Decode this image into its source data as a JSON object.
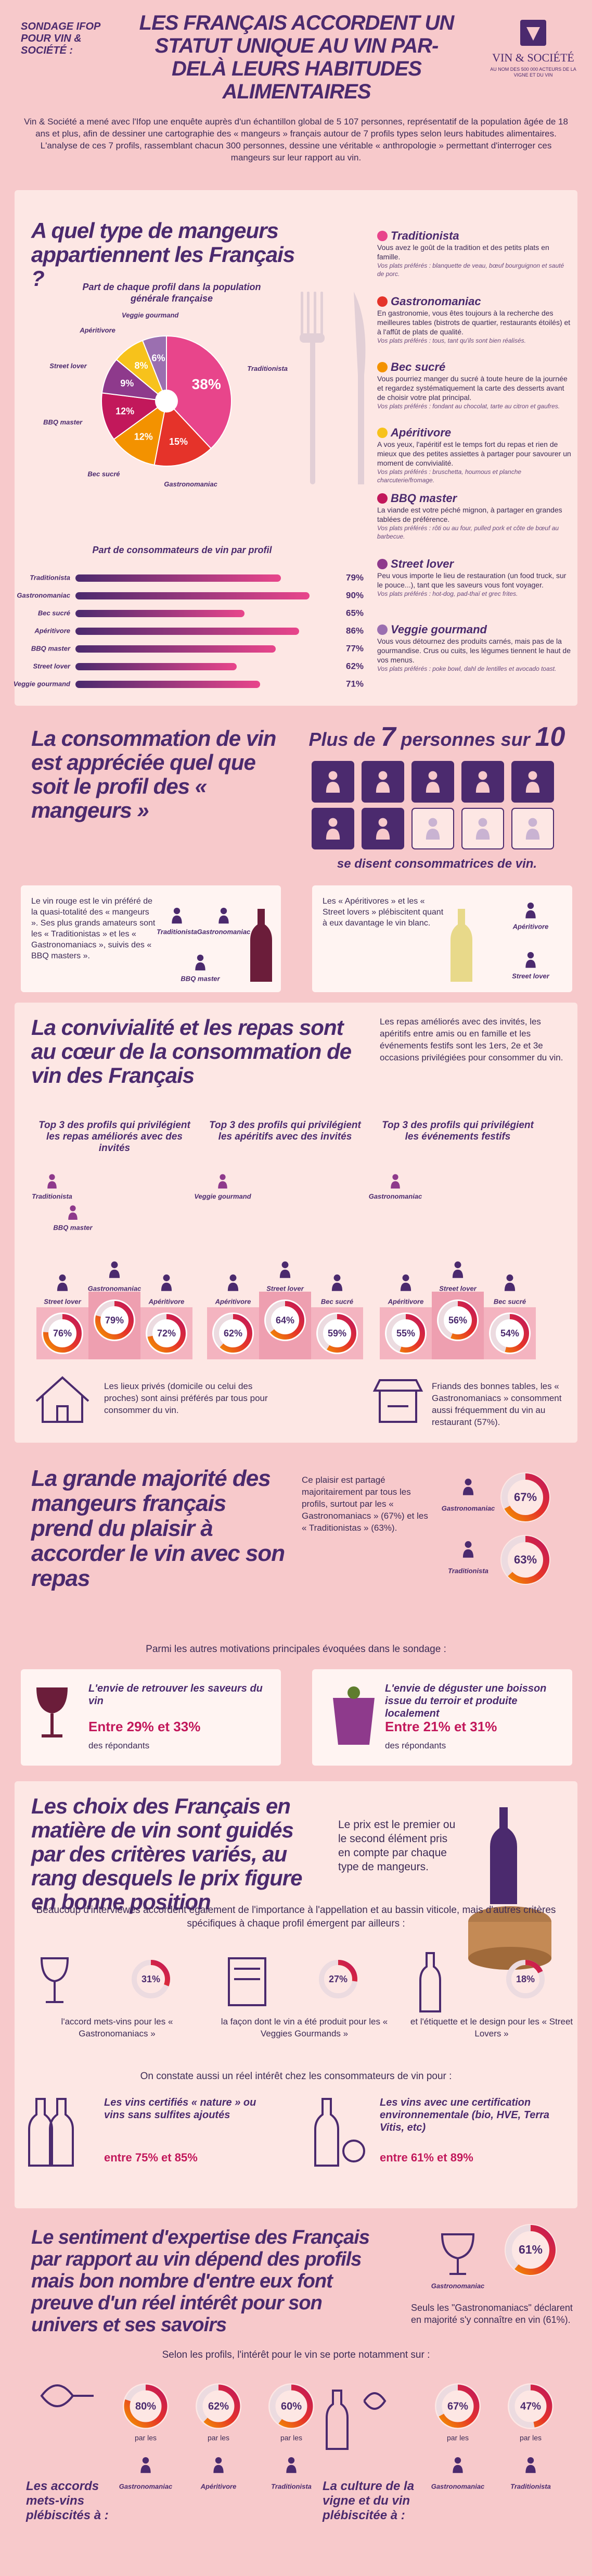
{
  "style": {
    "accent": "#4b2a6e",
    "page": "#f7c9cb",
    "card": "#fde7e4",
    "ring": "#ecdbe0",
    "donut_gradient": [
      "#f39200",
      "#e5332a",
      "#c2185b"
    ],
    "bar_gradient": [
      "#4b2a6e",
      "#e8458b"
    ]
  },
  "header": {
    "kicker": "SONDAGE IFOP POUR VIN & SOCIÉTÉ :",
    "title": "LES FRANÇAIS ACCORDENT UN STATUT UNIQUE AU VIN PAR-DELÀ LEURS HABITUDES ALIMENTAIRES",
    "logo": "VIN & SOCIÉTÉ",
    "logo_tagline": "AU NOM DES 500 000 ACTEURS DE LA VIGNE ET DU VIN"
  },
  "intro": "Vin & Société a mené avec l'Ifop une enquête auprès d'un échantillon global de 5 107 personnes, représentatif de la population âgée de 18 ans et plus, afin de dessiner une cartographie des « mangeurs » français autour de 7 profils types selon leurs habitudes alimentaires. L'analyse de ces 7 profils, rassemblant chacun 300 personnes, dessine une véritable « anthropologie » permettant d'interroger ces mangeurs sur leur rapport au vin.",
  "profiles_section": {
    "title": "A quel type de mangeurs appartiennent les Français ?",
    "pie": {
      "type": "pie",
      "title": "Part de chaque profil dans la population générale française",
      "categories": [
        "Traditionista",
        "Gastronomaniac",
        "Bec sucré",
        "BBQ master",
        "Street lover",
        "Apéritivore",
        "Veggie gourmand"
      ],
      "values": [
        38,
        15,
        12,
        12,
        9,
        8,
        6
      ],
      "value_labels": [
        "38%",
        "15%",
        "12%",
        "12%",
        "9%",
        "8%",
        "6%"
      ],
      "colors": [
        "#e8458b",
        "#e5332a",
        "#f39200",
        "#c2185b",
        "#8e3a8c",
        "#f7c21b",
        "#9b6fb0"
      ]
    },
    "bars": {
      "type": "bar",
      "orientation": "horizontal",
      "title": "Part de consommateurs de vin par profil",
      "categories": [
        "Traditionista",
        "Gastronomaniac",
        "Bec sucré",
        "Apéritivore",
        "BBQ master",
        "Street lover",
        "Veggie gourmand"
      ],
      "values": [
        79,
        90,
        65,
        86,
        77,
        62,
        71
      ],
      "value_labels": [
        "79%",
        "90%",
        "65%",
        "86%",
        "77%",
        "62%",
        "71%"
      ],
      "xlim": [
        0,
        100
      ]
    },
    "profiles": [
      {
        "name": "Traditionista",
        "description": "Vous avez le goût de la tradition et des petits plats en famille.",
        "dishes": "Vos plats préférés : blanquette de veau, bœuf bourguignon et sauté de porc."
      },
      {
        "name": "Gastronomaniac",
        "description": "En gastronomie, vous êtes toujours à la recherche des meilleures tables (bistrots de quartier, restaurants étoilés) et à l'affût de plats de qualité.",
        "dishes": "Vos plats préférés : tous, tant qu'ils sont bien réalisés."
      },
      {
        "name": "Bec sucré",
        "description": "Vous pourriez manger du sucré à toute heure de la journée et regardez systématiquement la carte des desserts avant de choisir votre plat principal.",
        "dishes": "Vos plats préférés : fondant au chocolat, tarte au citron et gaufres."
      },
      {
        "name": "Apéritivore",
        "description": "A vos yeux, l'apéritif est le temps fort du repas et rien de mieux que des petites assiettes à partager pour savourer un moment de convivialité.",
        "dishes": "Vos plats préférés : bruschetta, houmous et planche charcuterie/fromage."
      },
      {
        "name": "BBQ master",
        "description": "La viande est votre péché mignon, à partager en grandes tablées de préférence.",
        "dishes": "Vos plats préférés : rôti ou au four, pulled pork et côte de bœuf au barbecue."
      },
      {
        "name": "Street lover",
        "description": "Peu vous importe le lieu de restauration (un food truck, sur le pouce...), tant que les saveurs vous font voyager.",
        "dishes": "Vos plats préférés : hot-dog, pad-thaï et grec frites."
      },
      {
        "name": "Veggie gourmand",
        "description": "Vous vous détournez des produits carnés, mais pas de la gourmandise. Crus ou cuits, les légumes tiennent le haut de vos menus.",
        "dishes": "Vos plats préférés : poke bowl, dahl de lentilles et avocado toast."
      }
    ]
  },
  "wine_section": {
    "title": "La consommation de vin est appréciée quel que soit le profil des « mangeurs »",
    "headline": {
      "prefix": "Plus de",
      "count": 7,
      "middle": "personnes sur",
      "total": 10
    },
    "caption": "se disent consommatrices de vin.",
    "red": {
      "text": "Le vin rouge est le vin préféré de la quasi-totalité des « mangeurs ». Ses plus grands amateurs sont les « Traditionistas » et les « Gastronomaniacs », suivis des « BBQ masters ».",
      "profiles": [
        "Traditionista",
        "Gastronomaniac",
        "BBQ master"
      ]
    },
    "white": {
      "text": "Les « Apéritivores » et les « Street lovers » plébiscitent quant à eux davantage le vin blanc.",
      "profiles": [
        "Apéritivore",
        "Street lover"
      ]
    }
  },
  "conviviality": {
    "title": "La convivialité et les repas sont au cœur de la consommation de vin des Français",
    "text": "Les repas améliorés avec des invités, les apéritifs entre amis ou en famille et les événements festifs sont les 1ers, 2e et 3e occasions privilégiées pour consommer du vin.",
    "columns": [
      {
        "title": "Top 3 des profils qui privilégient les repas améliorés avec des invités",
        "others": [
          "Traditionista",
          "BBQ master"
        ],
        "podium": [
          {
            "name": "Street lover",
            "value": 76,
            "label": "76%"
          },
          {
            "name": "Gastronomaniac",
            "value": 79,
            "label": "79%"
          },
          {
            "name": "Apéritivore",
            "value": 72,
            "label": "72%"
          }
        ]
      },
      {
        "title": "Top 3 des profils qui privilégient les apéritifs avec des invités",
        "others": [
          "Veggie gourmand"
        ],
        "podium": [
          {
            "name": "Apéritivore",
            "value": 62,
            "label": "62%"
          },
          {
            "name": "Street lover",
            "value": 64,
            "label": "64%"
          },
          {
            "name": "Bec sucré",
            "value": 59,
            "label": "59%"
          }
        ]
      },
      {
        "title": "Top 3 des profils qui privilégient les événements festifs",
        "others": [
          "Gastronomaniac"
        ],
        "podium": [
          {
            "name": "Apéritivore",
            "value": 55,
            "label": "55%"
          },
          {
            "name": "Street lover",
            "value": 56,
            "label": "56%"
          },
          {
            "name": "Bec sucré",
            "value": 54,
            "label": "54%"
          }
        ]
      }
    ],
    "notes": [
      "Les lieux privés (domicile ou celui des proches) sont ainsi préférés par tous pour consommer du vin.",
      "Friands des bonnes tables, les « Gastronomaniacs » consomment aussi fréquemment du vin au restaurant (57%)."
    ]
  },
  "pairing": {
    "title": "La grande majorité des mangeurs français prend du plaisir à accorder le vin avec son repas",
    "text": "Ce plaisir est partagé majoritairement par tous les profils, surtout par les « Gastronomaniacs » (67%) et les « Traditionistas » (63%).",
    "donuts": [
      {
        "name": "Gastronomaniac",
        "value": 67,
        "label": "67%"
      },
      {
        "name": "Traditionista",
        "value": 63,
        "label": "63%"
      }
    ],
    "motivations_intro": "Parmi les autres motivations principales évoquées dans le sondage :",
    "motivations": [
      {
        "title": "L'envie de retrouver les saveurs du vin",
        "detail": "Entre 29% et 33%",
        "suffix": "des répondants"
      },
      {
        "title": "L'envie de déguster une boisson issue du terroir et produite localement",
        "detail": "Entre 21% et 31%",
        "suffix": "des répondants"
      }
    ]
  },
  "criteria": {
    "title": "Les choix des Français en matière de vin sont guidés par des critères variés, au rang desquels le prix figure en bonne position",
    "price_text": "Le prix est le premier ou le second élément pris en compte par chaque type de mangeurs.",
    "appellation_text": "Beaucoup d'interviewés accordent également de l'importance à l'appellation et au bassin viticole, mais d'autres critères spécifiques à chaque profil émergent par ailleurs :",
    "items": [
      {
        "value": 31,
        "label": "31%",
        "text": "l'accord mets-vins pour les « Gastronomaniacs »"
      },
      {
        "value": 27,
        "label": "27%",
        "text": "la façon dont le vin a été produit pour les « Veggies Gourmands »"
      },
      {
        "value": 18,
        "label": "18%",
        "text": "et l'étiquette et le design pour les « Street Lovers »"
      }
    ],
    "interest_intro": "On constate aussi un réel intérêt chez les consommateurs de vin pour :",
    "interests": [
      {
        "title": "Les vins certifiés « nature » ou vins sans sulfites ajoutés",
        "detail": "entre 75% et 85%"
      },
      {
        "title": "Les vins avec une certification environnementale (bio, HVE, Terra Vitis, etc)",
        "detail": "entre 61% et 89%"
      }
    ]
  },
  "expertise": {
    "title": "Le sentiment d'expertise des Français par rapport au vin dépend des profils mais bon nombre d'entre eux font preuve d'un réel intérêt pour son univers et ses savoirs",
    "donut": {
      "name": "Gastronomaniac",
      "value": 61,
      "label": "61%"
    },
    "donut_text": "Seuls les \"Gastronomaniacs\" déclarent en majorité s'y connaître en vin (61%).",
    "intro": "Selon les profils, l'intérêt pour le vin se porte notamment sur :",
    "by": "par les",
    "groups": [
      {
        "title": "Les accords mets-vins plébiscités à :",
        "items": [
          {
            "name": "Gastronomaniac",
            "value": 80,
            "label": "80%"
          },
          {
            "name": "Apéritivore",
            "value": 62,
            "label": "62%"
          },
          {
            "name": "Traditionista",
            "value": 60,
            "label": "60%"
          }
        ]
      },
      {
        "title": "La culture de la vigne et du vin plébiscitée à :",
        "items": [
          {
            "name": "Gastronomaniac",
            "value": 67,
            "label": "67%"
          },
          {
            "name": "Traditionista",
            "value": 47,
            "label": "47%"
          }
        ]
      }
    ]
  }
}
